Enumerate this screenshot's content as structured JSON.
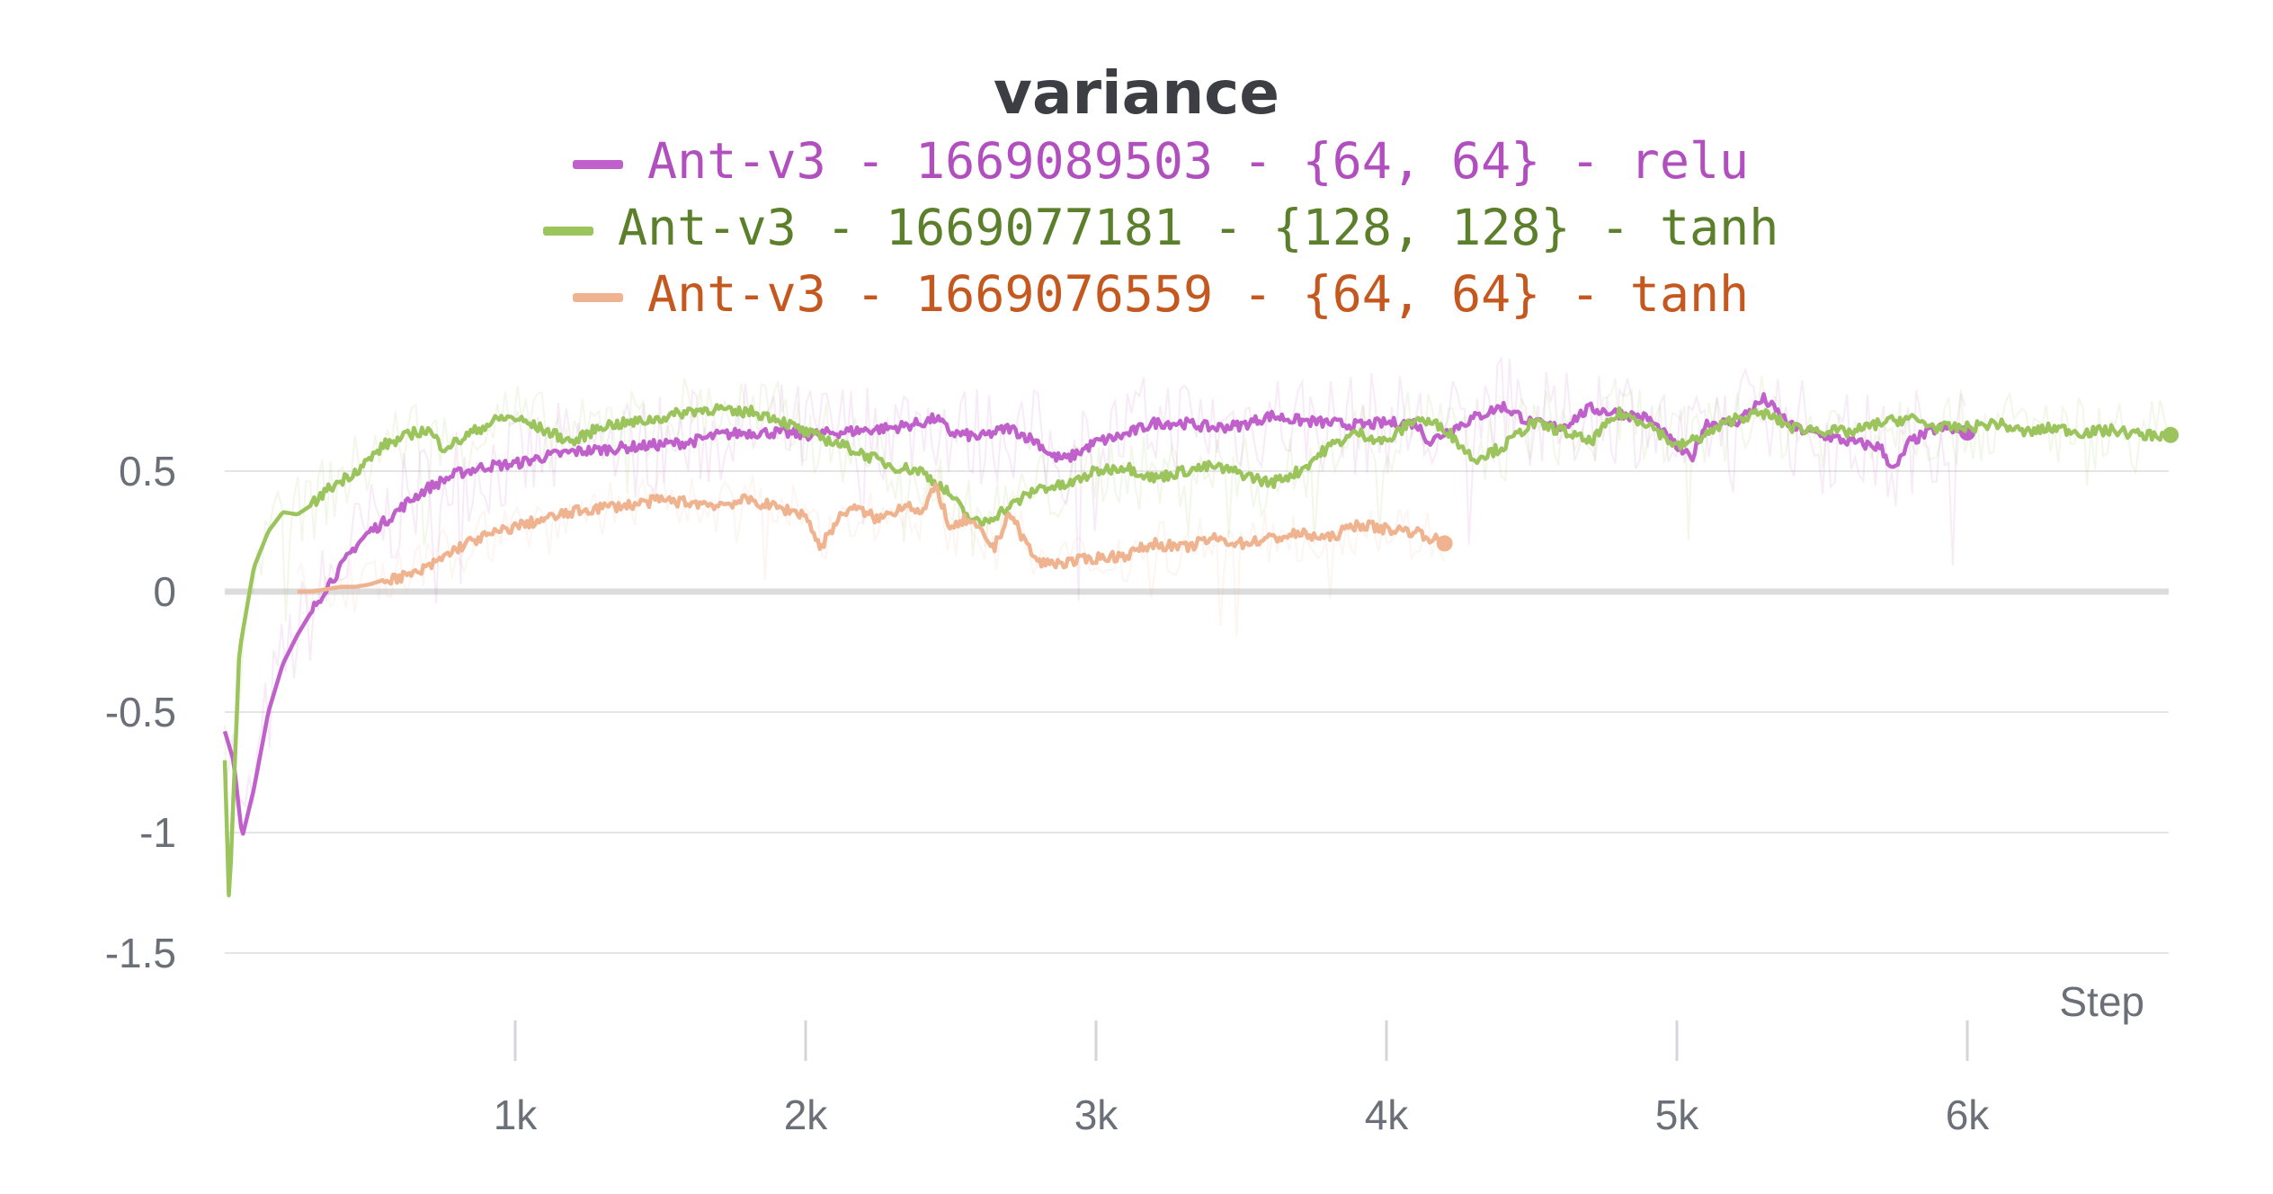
{
  "chart_data": {
    "type": "line",
    "title": "variance",
    "xlabel": "Step",
    "ylabel": "",
    "xlim": [
      0,
      6720
    ],
    "ylim": [
      -1.8,
      0.85
    ],
    "y_ticks": [
      0.5,
      0,
      -0.5,
      -1,
      -1.5
    ],
    "y_tick_labels": [
      "0.5",
      "0",
      "-0.5",
      "-1",
      "-1.5"
    ],
    "x_ticks": [
      1000,
      2000,
      3000,
      4000,
      5000,
      6000
    ],
    "x_tick_labels": [
      "1k",
      "2k",
      "3k",
      "4k",
      "5k",
      "6k"
    ],
    "grid": true,
    "legend_position": "top",
    "series": [
      {
        "name": "Ant-v3 - 1669089503 - {64, 64} - relu",
        "color": "#c061cb",
        "text_color": "#b24fbf",
        "x": [
          0,
          30,
          60,
          100,
          150,
          200,
          250,
          300,
          350,
          400,
          450,
          500,
          550,
          600,
          650,
          700,
          800,
          900,
          1000,
          1100,
          1200,
          1300,
          1400,
          1500,
          1600,
          1700,
          1800,
          1900,
          2000,
          2100,
          2200,
          2300,
          2400,
          2450,
          2500,
          2600,
          2700,
          2800,
          2850,
          2900,
          3000,
          3100,
          3200,
          3300,
          3400,
          3500,
          3600,
          3700,
          3800,
          3900,
          4000,
          4100,
          4150,
          4200,
          4300,
          4400,
          4500,
          4600,
          4700,
          4800,
          4900,
          5000,
          5050,
          5100,
          5200,
          5300,
          5400,
          5500,
          5600,
          5700,
          5750,
          5800,
          5900,
          6000
        ],
        "values": [
          -0.58,
          -0.7,
          -1.02,
          -0.82,
          -0.5,
          -0.3,
          -0.18,
          -0.08,
          0.02,
          0.1,
          0.19,
          0.25,
          0.29,
          0.34,
          0.39,
          0.43,
          0.49,
          0.52,
          0.53,
          0.56,
          0.58,
          0.59,
          0.6,
          0.61,
          0.62,
          0.65,
          0.66,
          0.66,
          0.65,
          0.66,
          0.67,
          0.68,
          0.7,
          0.72,
          0.66,
          0.64,
          0.68,
          0.62,
          0.56,
          0.55,
          0.62,
          0.65,
          0.7,
          0.7,
          0.68,
          0.69,
          0.73,
          0.71,
          0.7,
          0.69,
          0.7,
          0.7,
          0.62,
          0.66,
          0.72,
          0.77,
          0.7,
          0.68,
          0.76,
          0.74,
          0.72,
          0.6,
          0.55,
          0.7,
          0.7,
          0.8,
          0.68,
          0.65,
          0.62,
          0.6,
          0.5,
          0.62,
          0.68,
          0.66
        ]
      },
      {
        "name": "Ant-v3 - 1669077181 - {128, 128} - tanh",
        "color": "#9bc45d",
        "text_color": "#5b7f2a",
        "x": [
          0,
          15,
          50,
          100,
          150,
          200,
          250,
          300,
          350,
          400,
          450,
          500,
          550,
          600,
          650,
          700,
          750,
          800,
          850,
          900,
          950,
          1000,
          1100,
          1200,
          1300,
          1400,
          1500,
          1600,
          1700,
          1750,
          1800,
          1900,
          2000,
          2100,
          2200,
          2300,
          2400,
          2450,
          2500,
          2550,
          2600,
          2700,
          2800,
          2900,
          3000,
          3100,
          3200,
          3300,
          3400,
          3500,
          3600,
          3700,
          3800,
          3900,
          4000,
          4100,
          4200,
          4300,
          4400,
          4500,
          4600,
          4700,
          4800,
          4900,
          5000,
          5100,
          5200,
          5300,
          5400,
          5500,
          5600,
          5700,
          5800,
          5900,
          6000,
          6100,
          6200,
          6300,
          6400,
          6500,
          6600,
          6700
        ],
        "values": [
          -0.7,
          -1.3,
          -0.25,
          0.1,
          0.25,
          0.33,
          0.32,
          0.36,
          0.42,
          0.46,
          0.5,
          0.55,
          0.61,
          0.63,
          0.66,
          0.67,
          0.6,
          0.62,
          0.66,
          0.69,
          0.72,
          0.72,
          0.67,
          0.62,
          0.69,
          0.7,
          0.72,
          0.75,
          0.76,
          0.74,
          0.75,
          0.72,
          0.66,
          0.62,
          0.57,
          0.52,
          0.5,
          0.45,
          0.4,
          0.32,
          0.28,
          0.35,
          0.43,
          0.44,
          0.5,
          0.52,
          0.47,
          0.5,
          0.52,
          0.49,
          0.45,
          0.5,
          0.6,
          0.66,
          0.62,
          0.72,
          0.68,
          0.55,
          0.6,
          0.7,
          0.67,
          0.62,
          0.74,
          0.7,
          0.6,
          0.65,
          0.72,
          0.74,
          0.68,
          0.67,
          0.66,
          0.7,
          0.72,
          0.68,
          0.68,
          0.7,
          0.66,
          0.68,
          0.66,
          0.67,
          0.65,
          0.65
        ]
      },
      {
        "name": "Ant-v3 - 1669076559 - {64, 64} - tanh",
        "color": "#efb38f",
        "text_color": "#c4581e",
        "x": [
          250,
          300,
          350,
          400,
          450,
          500,
          550,
          600,
          650,
          700,
          750,
          800,
          850,
          900,
          950,
          1000,
          1100,
          1200,
          1300,
          1400,
          1500,
          1600,
          1700,
          1800,
          1900,
          2000,
          2050,
          2100,
          2150,
          2200,
          2250,
          2300,
          2350,
          2400,
          2450,
          2500,
          2550,
          2600,
          2650,
          2700,
          2750,
          2800,
          2900,
          3000,
          3100,
          3200,
          3300,
          3400,
          3500,
          3600,
          3700,
          3800,
          3900,
          4000,
          4100,
          4200
        ],
        "values": [
          0.0,
          0.0,
          0.01,
          0.02,
          0.02,
          0.03,
          0.05,
          0.06,
          0.07,
          0.1,
          0.14,
          0.18,
          0.21,
          0.23,
          0.25,
          0.27,
          0.3,
          0.33,
          0.35,
          0.36,
          0.38,
          0.37,
          0.36,
          0.38,
          0.35,
          0.32,
          0.18,
          0.28,
          0.35,
          0.33,
          0.3,
          0.33,
          0.37,
          0.32,
          0.44,
          0.25,
          0.3,
          0.25,
          0.18,
          0.33,
          0.22,
          0.12,
          0.12,
          0.14,
          0.15,
          0.2,
          0.18,
          0.22,
          0.2,
          0.22,
          0.24,
          0.22,
          0.28,
          0.26,
          0.25,
          0.2
        ]
      }
    ]
  }
}
